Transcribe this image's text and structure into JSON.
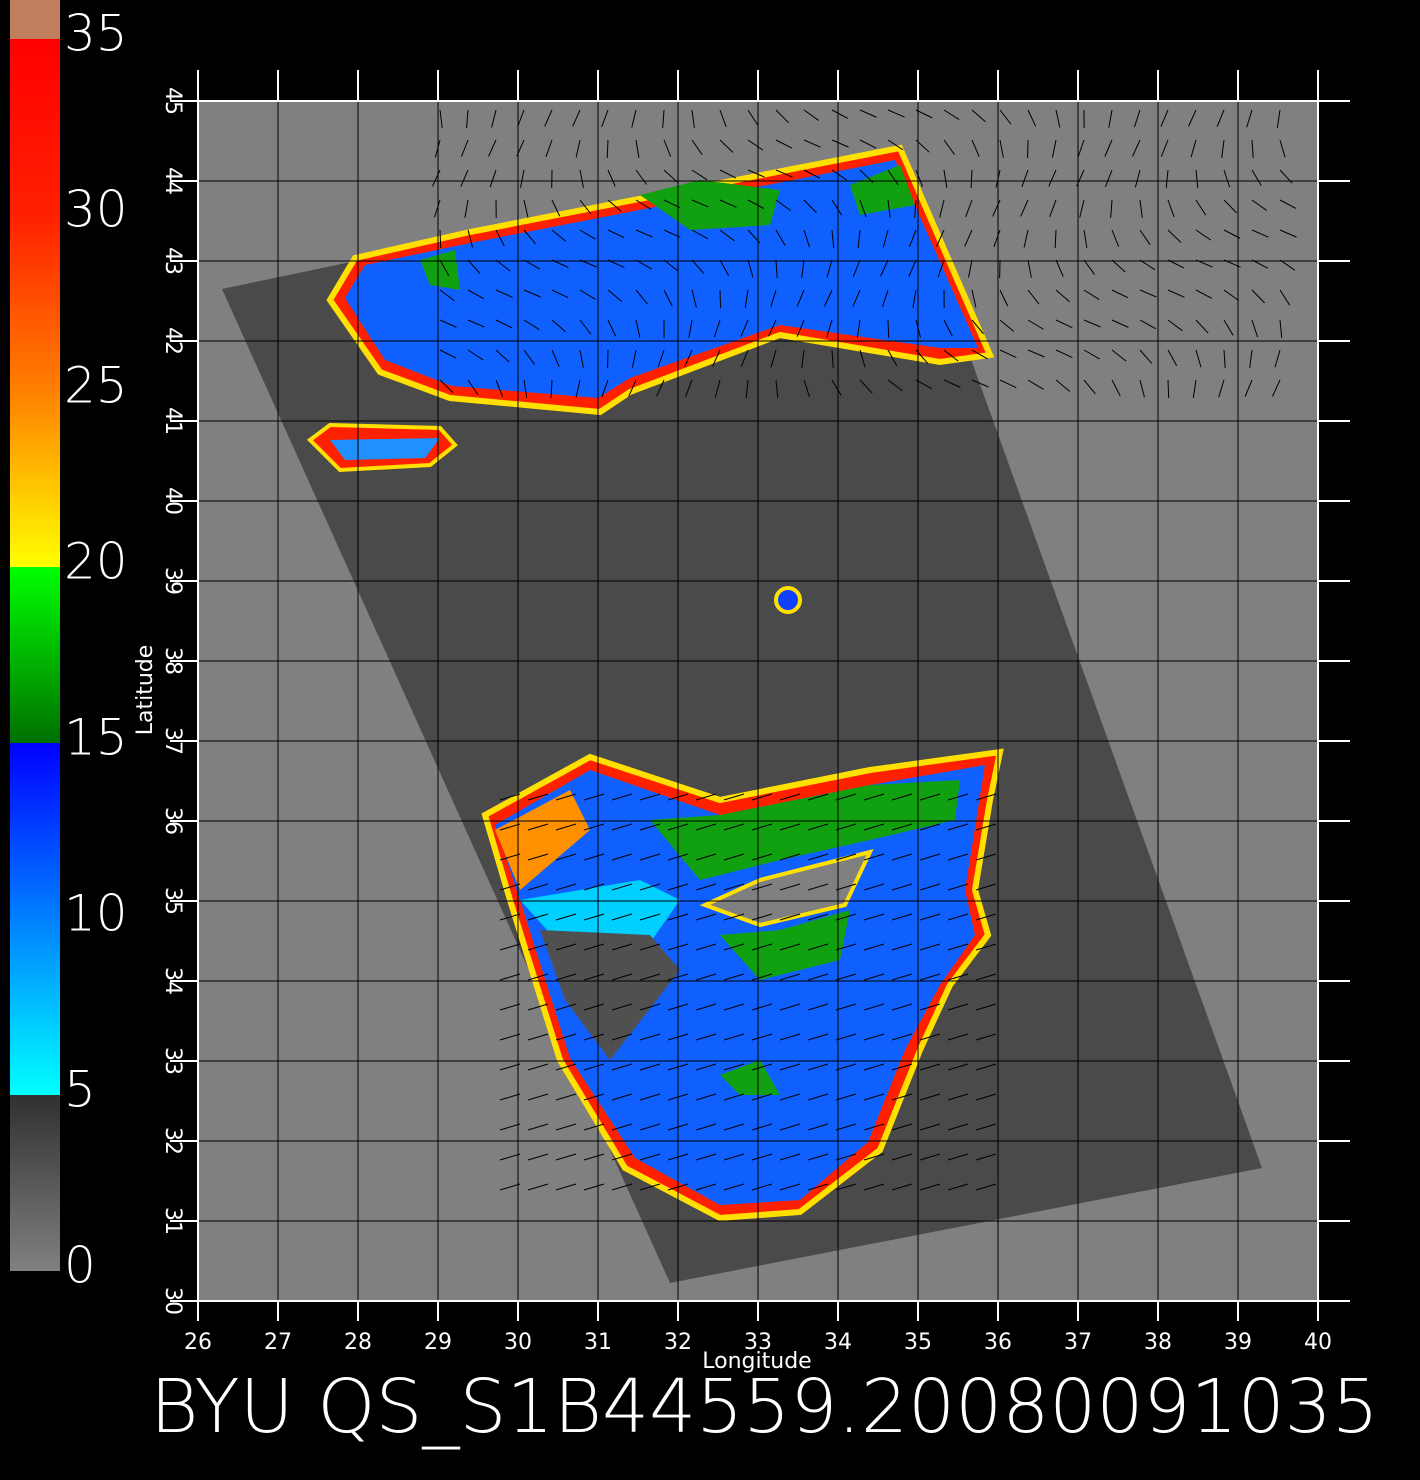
{
  "chart_data": {
    "type": "map",
    "title": "BYU  QS_S1B44559.20080091035",
    "x_label": "Longitude",
    "y_label": "Latitude",
    "xlim": [
      26,
      40
    ],
    "xticks": [
      26,
      27,
      28,
      29,
      30,
      31,
      32,
      33,
      34,
      35,
      36,
      37,
      38,
      39,
      40
    ],
    "ylim": [
      30,
      45
    ],
    "yticks": [
      30,
      31,
      32,
      33,
      34,
      35,
      36,
      37,
      38,
      39,
      40,
      41,
      42,
      43,
      44,
      45
    ],
    "grid": true,
    "colorbar": {
      "lim": [
        0,
        35
      ],
      "ticks": [
        0,
        5,
        10,
        15,
        20,
        25,
        30,
        35
      ],
      "stops": [
        {
          "value": 0,
          "color": "#808080"
        },
        {
          "value": 5,
          "color": "#303030"
        },
        {
          "value": 5,
          "color": "#00ffff"
        },
        {
          "value": 10,
          "color": "#0080ff"
        },
        {
          "value": 15,
          "color": "#0000ff"
        },
        {
          "value": 15,
          "color": "#007000"
        },
        {
          "value": 20,
          "color": "#00ff00"
        },
        {
          "value": 20,
          "color": "#ffff00"
        },
        {
          "value": 25,
          "color": "#ff8000"
        },
        {
          "value": 30,
          "color": "#ff2000"
        },
        {
          "value": 35,
          "color": "#ff0000"
        }
      ]
    }
  }
}
